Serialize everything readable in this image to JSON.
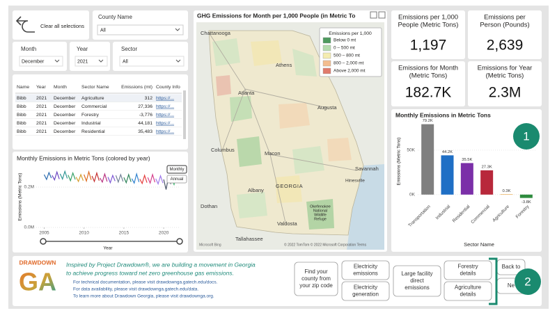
{
  "filters": {
    "clear": "Clear all selections",
    "county": {
      "label": "County Name",
      "value": "All"
    },
    "month": {
      "label": "Month",
      "value": "December"
    },
    "year": {
      "label": "Year",
      "value": "2021"
    },
    "sector": {
      "label": "Sector",
      "value": "All"
    }
  },
  "table": {
    "columns": [
      "Name",
      "Year",
      "Month",
      "Sector Name",
      "Emissions (mt)",
      "County Info"
    ],
    "rows": [
      [
        "Bibb",
        "2021",
        "December",
        "Agriculture",
        "312",
        "https://..."
      ],
      [
        "Bibb",
        "2021",
        "December",
        "Commercial",
        "27,336",
        "https://..."
      ],
      [
        "Bibb",
        "2021",
        "December",
        "Forestry",
        "-3,776",
        "https://..."
      ],
      [
        "Bibb",
        "2021",
        "December",
        "Industrial",
        "44,181",
        "https://..."
      ],
      [
        "Bibb",
        "2021",
        "December",
        "Residential",
        "35,483",
        "https://..."
      ]
    ]
  },
  "map": {
    "title": "GHG Emissions for Month per 1,000 People (in Metric To",
    "legend": {
      "title": "Emissions per 1,000",
      "items": [
        {
          "label": "Below 0 mt",
          "color": "#4e9a5e"
        },
        {
          "label": "0 – 500 mt",
          "color": "#b5dcae"
        },
        {
          "label": "500 – 800 mt",
          "color": "#f4ecb0"
        },
        {
          "label": "800 – 2,000 mt",
          "color": "#f3bd8f"
        },
        {
          "label": "Above 2,000 mt",
          "color": "#e07b6c"
        }
      ]
    },
    "places": [
      "Chattanooga",
      "Athens",
      "Atlanta",
      "Augusta",
      "Macon",
      "Columbus",
      "Savannah",
      "Hinesville",
      "Albany",
      "GEORGIA",
      "Dothan",
      "Valdosta",
      "Tallahassee"
    ],
    "refuge": [
      "Okefenokee",
      "National",
      "Wildlife",
      "Refuge"
    ],
    "attribution": "© 2022 TomTom © 2022 Microsoft Corporation Terms",
    "provider": "Microsoft Bing"
  },
  "kpis": [
    {
      "label": [
        "Emissions per 1,000",
        "People (Metric Tons)"
      ],
      "value": "1,197"
    },
    {
      "label": [
        "Emissions per",
        "Person (Pounds)"
      ],
      "value": "2,639"
    },
    {
      "label": [
        "Emissions for Month",
        "(Metric Tons)"
      ],
      "value": "182.7K"
    },
    {
      "label": [
        "Emissions for Year",
        "(Metric Tons)"
      ],
      "value": "2.3M"
    }
  ],
  "chart_data": [
    {
      "type": "line",
      "title": "Monthly Emissions in Metric Tons (colored by year)",
      "x_label": "Year",
      "y_label": "Emissions (Metric Tons)",
      "buttons": [
        "Monthly",
        "Annual"
      ],
      "xlim": [
        2004,
        2022
      ],
      "ylim": [
        0,
        300000
      ],
      "xticks": [
        2005,
        2010,
        2015,
        2020
      ],
      "yticks": [
        {
          "value": 0,
          "label": "0.0M"
        },
        {
          "value": 200000,
          "label": "0.2M"
        }
      ],
      "grid": true,
      "series": [
        {
          "color": "#2b6cb0",
          "x": [
            2005,
            2005.3,
            2005.6,
            2005.9
          ],
          "values": [
            262000,
            238000,
            272000,
            245000
          ]
        },
        {
          "color": "#6b46c1",
          "x": [
            2006,
            2006.3,
            2006.6,
            2006.9
          ],
          "values": [
            258000,
            236000,
            275000,
            240000
          ]
        },
        {
          "color": "#319795",
          "x": [
            2007,
            2007.3,
            2007.6,
            2007.9
          ],
          "values": [
            266000,
            240000,
            278000,
            243000
          ]
        },
        {
          "color": "#38a169",
          "x": [
            2008,
            2008.3,
            2008.6,
            2008.9
          ],
          "values": [
            260000,
            232000,
            270000,
            238000
          ]
        },
        {
          "color": "#d69e2e",
          "x": [
            2009,
            2009.3,
            2009.6,
            2009.9
          ],
          "values": [
            250000,
            228000,
            262000,
            232000
          ]
        },
        {
          "color": "#dd6b20",
          "x": [
            2010,
            2010.3,
            2010.6,
            2010.9
          ],
          "values": [
            262000,
            230000,
            276000,
            236000
          ]
        },
        {
          "color": "#c53030",
          "x": [
            2011,
            2011.3,
            2011.6,
            2011.9
          ],
          "values": [
            255000,
            228000,
            270000,
            232000
          ]
        },
        {
          "color": "#b83280",
          "x": [
            2012,
            2012.3,
            2012.6,
            2012.9
          ],
          "values": [
            245000,
            225000,
            265000,
            228000
          ]
        },
        {
          "color": "#805ad5",
          "x": [
            2013,
            2013.3,
            2013.6,
            2013.9
          ],
          "values": [
            250000,
            222000,
            258000,
            230000
          ]
        },
        {
          "color": "#718096",
          "x": [
            2014,
            2014.3,
            2014.6,
            2014.9
          ],
          "values": [
            258000,
            225000,
            262000,
            228000
          ]
        },
        {
          "color": "#2f855a",
          "x": [
            2015,
            2015.3,
            2015.6,
            2015.9
          ],
          "values": [
            248000,
            222000,
            262000,
            226000
          ]
        },
        {
          "color": "#3182ce",
          "x": [
            2016,
            2016.3,
            2016.6,
            2016.9
          ],
          "values": [
            242000,
            220000,
            265000,
            225000
          ]
        },
        {
          "color": "#e53e3e",
          "x": [
            2017,
            2017.3,
            2017.6,
            2017.9
          ],
          "values": [
            240000,
            218000,
            258000,
            222000
          ]
        },
        {
          "color": "#d53f8c",
          "x": [
            2018,
            2018.3,
            2018.6,
            2018.9
          ],
          "values": [
            248000,
            220000,
            262000,
            224000
          ]
        },
        {
          "color": "#9f7aea",
          "x": [
            2019,
            2019.3,
            2019.6,
            2019.9
          ],
          "values": [
            242000,
            216000,
            256000,
            220000
          ]
        },
        {
          "color": "#4a5568",
          "x": [
            2020,
            2020.3,
            2020.6,
            2020.9
          ],
          "values": [
            238000,
            188000,
            250000,
            215000
          ]
        },
        {
          "color": "#48bb78",
          "x": [
            2021,
            2021.3,
            2021.6,
            2021.9
          ],
          "values": [
            236000,
            212000,
            252000,
            225000
          ]
        }
      ]
    },
    {
      "type": "bar",
      "title": "Monthly Emissions in Metric Tons",
      "x_label": "Sector Name",
      "y_label": "Emissions (Metric Tons)",
      "categories": [
        "Transportation",
        "Industrial",
        "Residential",
        "Commercial",
        "Agriculture",
        "Forestry"
      ],
      "values": [
        79200,
        44181,
        35483,
        27336,
        312,
        -3776
      ],
      "value_labels": [
        "79.2K",
        "44.2K",
        "35.5K",
        "27.3K",
        "0.3K",
        "-3.8K"
      ],
      "colors": [
        "#7f7f7f",
        "#1f6fc5",
        "#7b2fa8",
        "#b8283b",
        "#e8a23a",
        "#2e8b3e"
      ],
      "ylim": [
        -8000,
        82000
      ],
      "yticks": [
        {
          "value": 0,
          "label": "0K"
        },
        {
          "value": 50000,
          "label": "50K"
        }
      ],
      "grid": true
    }
  ],
  "footer": {
    "logo": [
      "DRAWDOWN",
      "GA"
    ],
    "mission": [
      "Inspired by Project Drawdown®, we are building a movement in Georgia",
      "to achieve progress toward net zero greenhouse gas emissions."
    ],
    "links": [
      "For technical documentation, please visit drawdownga.gatech.edu/docs.",
      "For data availability, please visit drawdownga.gatech.edu/data.",
      "To learn more about Drawdown Georgia, please visit drawdownga.org."
    ],
    "buttons": [
      [
        "Find your",
        "county from",
        "your zip code"
      ],
      [
        "Electricity",
        "emissions"
      ],
      [
        "Electricity",
        "generation"
      ],
      [
        "Large facility",
        "direct",
        "emissions"
      ],
      [
        "Forestry",
        "details"
      ],
      [
        "Agriculture",
        "details"
      ],
      [
        "Back to"
      ],
      [
        "Ne"
      ]
    ]
  },
  "badges": [
    "1",
    "2"
  ]
}
